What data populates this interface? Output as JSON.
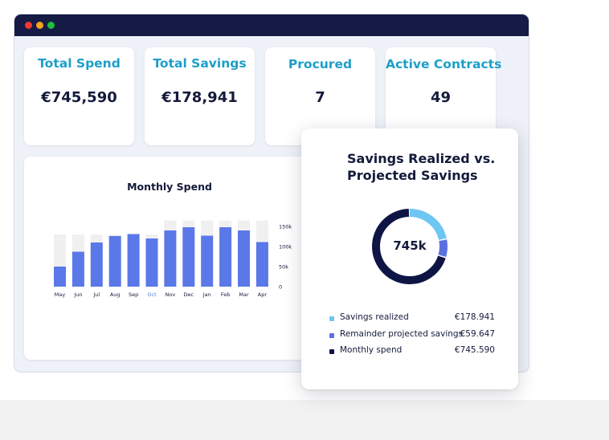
{
  "kpis": [
    {
      "label": "Total Spend",
      "value": "€745,590"
    },
    {
      "label": "Total Savings",
      "value": "€178,941"
    },
    {
      "label": "Procured",
      "value": "7"
    },
    {
      "label": "Active Contracts",
      "value": "49"
    }
  ],
  "monthly_spend": {
    "title": "Monthly Spend"
  },
  "savings": {
    "title_line1": "Savings Realized vs.",
    "title_line2": "Projected Savings",
    "center_label": "745k",
    "legend": [
      {
        "label": "Savings realized",
        "value": "€178.941",
        "color": "#6ec6f2"
      },
      {
        "label": "Remainder projected savings",
        "value": "€59.647",
        "color": "#5b70e0"
      },
      {
        "label": "Monthly spend",
        "value": "€745.590",
        "color": "#0e1545"
      }
    ]
  },
  "colors": {
    "accent": "#1d9fc8",
    "bar": "#5b78e8",
    "bar_background": "#f0f0f0",
    "titlebar": "#151b45",
    "highlight_month": "#4e7bd8"
  },
  "chart_data": [
    {
      "type": "bar",
      "title": "Monthly Spend",
      "categories": [
        "May",
        "Jun",
        "Jul",
        "Aug",
        "Sep",
        "Oct",
        "Nov",
        "Dec",
        "Jan",
        "Feb",
        "Mar",
        "Apr"
      ],
      "highlight_category": "Oct",
      "series": [
        {
          "values": [
            50000,
            87000,
            110000,
            126000,
            131000,
            120000,
            140000,
            148000,
            127000,
            148000,
            140000,
            111000
          ]
        }
      ],
      "ylim": [
        0,
        150000
      ],
      "yticks": [
        "0",
        "50k",
        "100k",
        "150k"
      ],
      "ytick_values": [
        0,
        50000,
        100000,
        150000
      ],
      "max_background": [
        130000,
        130000,
        130000,
        130000,
        130000,
        130000,
        165000,
        165000,
        165000,
        165000,
        165000,
        165000
      ],
      "grid": false,
      "xlabel": "",
      "ylabel": ""
    },
    {
      "type": "pie",
      "donut": true,
      "labels": [
        "Savings realized",
        "Remainder projected savings",
        "Monthly spend"
      ],
      "values": [
        178941,
        59647,
        745590
      ]
    }
  ]
}
